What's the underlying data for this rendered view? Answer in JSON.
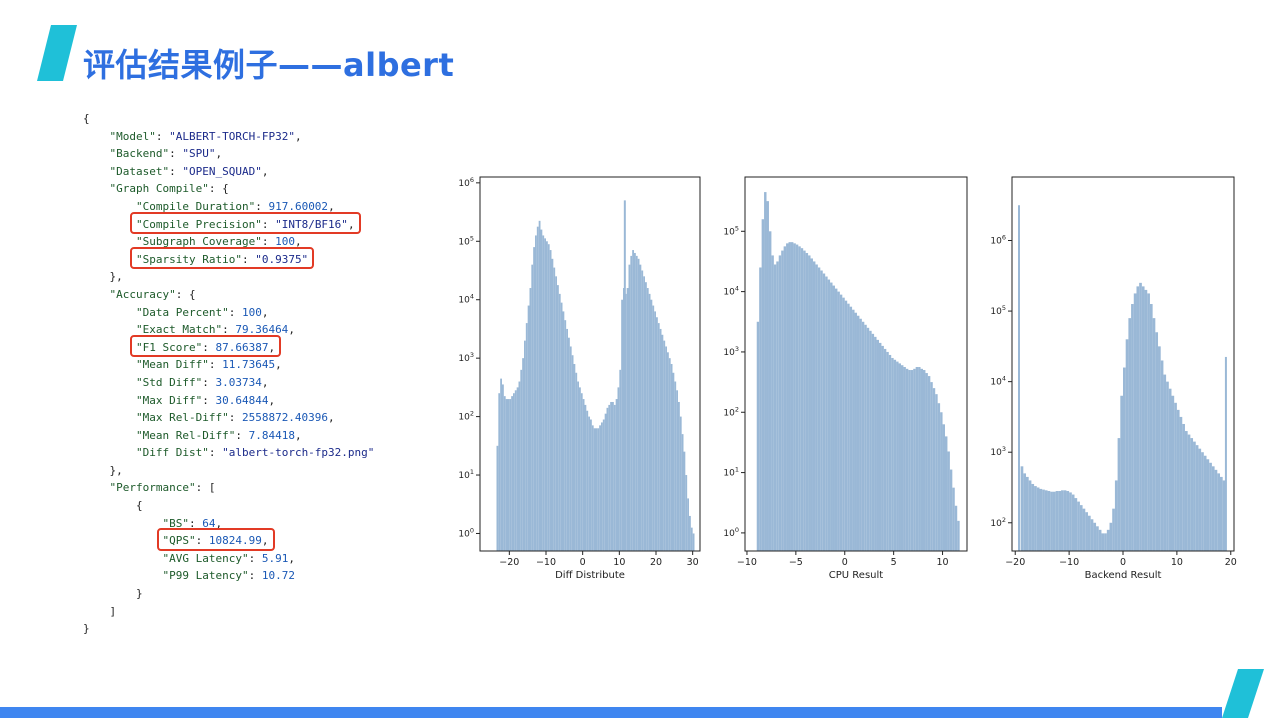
{
  "slide": {
    "title": "评估结果例子——albert"
  },
  "json_lines": [
    [
      {
        "t": "p",
        "v": "{"
      }
    ],
    [
      {
        "t": "p",
        "v": "    "
      },
      {
        "t": "k",
        "v": "\"Model\""
      },
      {
        "t": "p",
        "v": ": "
      },
      {
        "t": "s",
        "v": "\"ALBERT-TORCH-FP32\""
      },
      {
        "t": "p",
        "v": ","
      }
    ],
    [
      {
        "t": "p",
        "v": "    "
      },
      {
        "t": "k",
        "v": "\"Backend\""
      },
      {
        "t": "p",
        "v": ": "
      },
      {
        "t": "s",
        "v": "\"SPU\""
      },
      {
        "t": "p",
        "v": ","
      }
    ],
    [
      {
        "t": "p",
        "v": "    "
      },
      {
        "t": "k",
        "v": "\"Dataset\""
      },
      {
        "t": "p",
        "v": ": "
      },
      {
        "t": "s",
        "v": "\"OPEN_SQUAD\""
      },
      {
        "t": "p",
        "v": ","
      }
    ],
    [
      {
        "t": "p",
        "v": "    "
      },
      {
        "t": "k",
        "v": "\"Graph Compile\""
      },
      {
        "t": "p",
        "v": ": {"
      }
    ],
    [
      {
        "t": "p",
        "v": "        "
      },
      {
        "t": "k",
        "v": "\"Compile Duration\""
      },
      {
        "t": "p",
        "v": ": "
      },
      {
        "t": "n",
        "v": "917.60002"
      },
      {
        "t": "p",
        "v": ","
      }
    ],
    [
      {
        "t": "p",
        "v": "        "
      },
      {
        "t": "k",
        "v": "\"Compile Precision\""
      },
      {
        "t": "p",
        "v": ": "
      },
      {
        "t": "s",
        "v": "\"INT8/BF16\""
      },
      {
        "t": "p",
        "v": ","
      }
    ],
    [
      {
        "t": "p",
        "v": "        "
      },
      {
        "t": "k",
        "v": "\"Subgraph Coverage\""
      },
      {
        "t": "p",
        "v": ": "
      },
      {
        "t": "n",
        "v": "100"
      },
      {
        "t": "p",
        "v": ","
      }
    ],
    [
      {
        "t": "p",
        "v": "        "
      },
      {
        "t": "k",
        "v": "\"Sparsity Ratio\""
      },
      {
        "t": "p",
        "v": ": "
      },
      {
        "t": "s",
        "v": "\"0.9375\""
      }
    ],
    [
      {
        "t": "p",
        "v": "    },"
      }
    ],
    [
      {
        "t": "p",
        "v": "    "
      },
      {
        "t": "k",
        "v": "\"Accuracy\""
      },
      {
        "t": "p",
        "v": ": {"
      }
    ],
    [
      {
        "t": "p",
        "v": "        "
      },
      {
        "t": "k",
        "v": "\"Data Percent\""
      },
      {
        "t": "p",
        "v": ": "
      },
      {
        "t": "n",
        "v": "100"
      },
      {
        "t": "p",
        "v": ","
      }
    ],
    [
      {
        "t": "p",
        "v": "        "
      },
      {
        "t": "k",
        "v": "\"Exact Match\""
      },
      {
        "t": "p",
        "v": ": "
      },
      {
        "t": "n",
        "v": "79.36464"
      },
      {
        "t": "p",
        "v": ","
      }
    ],
    [
      {
        "t": "p",
        "v": "        "
      },
      {
        "t": "k",
        "v": "\"F1 Score\""
      },
      {
        "t": "p",
        "v": ": "
      },
      {
        "t": "n",
        "v": "87.66387"
      },
      {
        "t": "p",
        "v": ","
      }
    ],
    [
      {
        "t": "p",
        "v": "        "
      },
      {
        "t": "k",
        "v": "\"Mean Diff\""
      },
      {
        "t": "p",
        "v": ": "
      },
      {
        "t": "n",
        "v": "11.73645"
      },
      {
        "t": "p",
        "v": ","
      }
    ],
    [
      {
        "t": "p",
        "v": "        "
      },
      {
        "t": "k",
        "v": "\"Std Diff\""
      },
      {
        "t": "p",
        "v": ": "
      },
      {
        "t": "n",
        "v": "3.03734"
      },
      {
        "t": "p",
        "v": ","
      }
    ],
    [
      {
        "t": "p",
        "v": "        "
      },
      {
        "t": "k",
        "v": "\"Max Diff\""
      },
      {
        "t": "p",
        "v": ": "
      },
      {
        "t": "n",
        "v": "30.64844"
      },
      {
        "t": "p",
        "v": ","
      }
    ],
    [
      {
        "t": "p",
        "v": "        "
      },
      {
        "t": "k",
        "v": "\"Max Rel-Diff\""
      },
      {
        "t": "p",
        "v": ": "
      },
      {
        "t": "n",
        "v": "2558872.40396"
      },
      {
        "t": "p",
        "v": ","
      }
    ],
    [
      {
        "t": "p",
        "v": "        "
      },
      {
        "t": "k",
        "v": "\"Mean Rel-Diff\""
      },
      {
        "t": "p",
        "v": ": "
      },
      {
        "t": "n",
        "v": "7.84418"
      },
      {
        "t": "p",
        "v": ","
      }
    ],
    [
      {
        "t": "p",
        "v": "        "
      },
      {
        "t": "k",
        "v": "\"Diff Dist\""
      },
      {
        "t": "p",
        "v": ": "
      },
      {
        "t": "s",
        "v": "\"albert-torch-fp32.png\""
      }
    ],
    [
      {
        "t": "p",
        "v": "    },"
      }
    ],
    [
      {
        "t": "p",
        "v": "    "
      },
      {
        "t": "k",
        "v": "\"Performance\""
      },
      {
        "t": "p",
        "v": ": ["
      }
    ],
    [
      {
        "t": "p",
        "v": "        {"
      }
    ],
    [
      {
        "t": "p",
        "v": "            "
      },
      {
        "t": "k",
        "v": "\"BS\""
      },
      {
        "t": "p",
        "v": ": "
      },
      {
        "t": "n",
        "v": "64"
      },
      {
        "t": "p",
        "v": ","
      }
    ],
    [
      {
        "t": "p",
        "v": "            "
      },
      {
        "t": "k",
        "v": "\"QPS\""
      },
      {
        "t": "p",
        "v": ": "
      },
      {
        "t": "n",
        "v": "10824.99"
      },
      {
        "t": "p",
        "v": ","
      }
    ],
    [
      {
        "t": "p",
        "v": "            "
      },
      {
        "t": "k",
        "v": "\"AVG Latency\""
      },
      {
        "t": "p",
        "v": ": "
      },
      {
        "t": "n",
        "v": "5.91"
      },
      {
        "t": "p",
        "v": ","
      }
    ],
    [
      {
        "t": "p",
        "v": "            "
      },
      {
        "t": "k",
        "v": "\"P99 Latency\""
      },
      {
        "t": "p",
        "v": ": "
      },
      {
        "t": "n",
        "v": "10.72"
      }
    ],
    [
      {
        "t": "p",
        "v": "        }"
      }
    ],
    [
      {
        "t": "p",
        "v": "    ]"
      }
    ],
    [
      {
        "t": "p",
        "v": "}"
      }
    ]
  ],
  "highlighted_lines": [
    6,
    8,
    13,
    24
  ],
  "highlight_color": "#e23a25",
  "colors": {
    "title": "#2e6fe0",
    "accent_bar": "#3f86f0",
    "accent_corner": "#1fc0d8",
    "hist_fill": "#9ab8d6",
    "json_key": "#1d5a2a",
    "json_string": "#1b2a8a",
    "json_number": "#1a58b5"
  },
  "chart_data": [
    {
      "type": "histogram",
      "xlabel": "Diff Distribute",
      "y_scale": "log",
      "xlim": [
        -28,
        32
      ],
      "ylim_log10": [
        -0.3,
        6.1
      ],
      "x_ticks": [
        -20,
        -10,
        0,
        10,
        20,
        30
      ],
      "y_ticks_log10": [
        0,
        1,
        2,
        3,
        4,
        5,
        6
      ],
      "bins_x": [
        -23.5,
        -23,
        -22.5,
        -22,
        -21.5,
        -21,
        -20.5,
        -20,
        -19.5,
        -19,
        -18.5,
        -18,
        -17.5,
        -17,
        -16.5,
        -16,
        -15.5,
        -15,
        -14.5,
        -14,
        -13.5,
        -13,
        -12.5,
        -12,
        -11.5,
        -11,
        -10.5,
        -10,
        -9.5,
        -9,
        -8.5,
        -8,
        -7.5,
        -7,
        -6.5,
        -6,
        -5.5,
        -5,
        -4.5,
        -4,
        -3.5,
        -3,
        -2.5,
        -2,
        -1.5,
        -1,
        -0.5,
        0,
        0.5,
        1,
        1.5,
        2,
        2.5,
        3,
        3.5,
        4,
        4.5,
        5,
        5.5,
        6,
        6.5,
        7,
        7.5,
        8,
        8.5,
        9,
        9.5,
        10,
        10.5,
        11,
        11.5,
        12,
        12.5,
        13,
        13.5,
        14,
        14.5,
        15,
        15.5,
        16,
        16.5,
        17,
        17.5,
        18,
        18.5,
        19,
        19.5,
        20,
        20.5,
        21,
        21.5,
        22,
        22.5,
        23,
        23.5,
        24,
        24.5,
        25,
        25.5,
        26,
        26.5,
        27,
        27.5,
        28,
        28.5,
        29,
        29.5,
        30
      ],
      "counts_log10": [
        1.5,
        2.4,
        2.65,
        2.55,
        2.35,
        2.3,
        2.3,
        2.3,
        2.35,
        2.4,
        2.45,
        2.5,
        2.6,
        2.8,
        3.0,
        3.3,
        3.6,
        3.9,
        4.2,
        4.6,
        4.9,
        5.1,
        5.25,
        5.35,
        5.2,
        5.1,
        5.05,
        5.0,
        4.95,
        4.85,
        4.7,
        4.55,
        4.4,
        4.25,
        4.1,
        3.95,
        3.8,
        3.65,
        3.5,
        3.35,
        3.2,
        3.05,
        2.9,
        2.75,
        2.6,
        2.5,
        2.4,
        2.3,
        2.2,
        2.1,
        2.0,
        1.95,
        1.85,
        1.8,
        1.8,
        1.8,
        1.85,
        1.9,
        1.95,
        2.05,
        2.15,
        2.2,
        2.25,
        2.25,
        2.2,
        2.3,
        2.5,
        2.8,
        4.0,
        4.2,
        4.1,
        4.2,
        4.6,
        4.75,
        4.85,
        4.8,
        4.75,
        4.7,
        4.6,
        4.5,
        4.4,
        4.3,
        4.2,
        4.1,
        4.0,
        3.9,
        3.8,
        3.7,
        3.6,
        3.5,
        3.4,
        3.3,
        3.2,
        3.1,
        3.0,
        2.9,
        2.75,
        2.6,
        2.45,
        2.25,
        2.0,
        1.7,
        1.4,
        1.0,
        0.6,
        0.3,
        0.1,
        0.0
      ],
      "spikes": [
        {
          "x": 11.5,
          "log10": 5.7
        }
      ]
    },
    {
      "type": "histogram",
      "xlabel": "CPU Result",
      "y_scale": "log",
      "xlim": [
        -10.2,
        12.5
      ],
      "ylim_log10": [
        -0.3,
        5.9
      ],
      "x_ticks": [
        -10,
        -5,
        0,
        5,
        10
      ],
      "y_ticks_log10": [
        0,
        1,
        2,
        3,
        4,
        5
      ],
      "bins_x": [
        -9,
        -8.75,
        -8.5,
        -8.25,
        -8,
        -7.75,
        -7.5,
        -7.25,
        -7,
        -6.75,
        -6.5,
        -6.25,
        -6,
        -5.75,
        -5.5,
        -5.25,
        -5,
        -4.75,
        -4.5,
        -4.25,
        -4,
        -3.75,
        -3.5,
        -3.25,
        -3,
        -2.75,
        -2.5,
        -2.25,
        -2,
        -1.75,
        -1.5,
        -1.25,
        -1,
        -0.75,
        -0.5,
        -0.25,
        0,
        0.25,
        0.5,
        0.75,
        1,
        1.25,
        1.5,
        1.75,
        2,
        2.25,
        2.5,
        2.75,
        3,
        3.25,
        3.5,
        3.75,
        4,
        4.25,
        4.5,
        4.75,
        5,
        5.25,
        5.5,
        5.75,
        6,
        6.25,
        6.5,
        6.75,
        7,
        7.25,
        7.5,
        7.75,
        8,
        8.25,
        8.5,
        8.75,
        9,
        9.25,
        9.5,
        9.75,
        10,
        10.25,
        10.5,
        10.75,
        11,
        11.25,
        11.5
      ],
      "counts_log10": [
        3.5,
        4.4,
        5.2,
        5.65,
        5.5,
        5.0,
        4.6,
        4.45,
        4.5,
        4.6,
        4.68,
        4.75,
        4.8,
        4.82,
        4.82,
        4.8,
        4.78,
        4.75,
        4.72,
        4.68,
        4.64,
        4.6,
        4.55,
        4.5,
        4.45,
        4.4,
        4.35,
        4.3,
        4.25,
        4.2,
        4.15,
        4.1,
        4.05,
        4.0,
        3.95,
        3.9,
        3.85,
        3.8,
        3.75,
        3.7,
        3.65,
        3.6,
        3.55,
        3.5,
        3.45,
        3.4,
        3.35,
        3.3,
        3.25,
        3.2,
        3.15,
        3.1,
        3.05,
        3.0,
        2.95,
        2.9,
        2.87,
        2.84,
        2.81,
        2.78,
        2.75,
        2.72,
        2.7,
        2.7,
        2.72,
        2.75,
        2.75,
        2.72,
        2.7,
        2.65,
        2.6,
        2.5,
        2.4,
        2.3,
        2.15,
        2.0,
        1.8,
        1.6,
        1.35,
        1.05,
        0.75,
        0.45,
        0.2
      ]
    },
    {
      "type": "histogram",
      "xlabel": "Backend Result",
      "y_scale": "log",
      "xlim": [
        -20.6,
        20.6
      ],
      "ylim_log10": [
        1.6,
        6.9
      ],
      "x_ticks": [
        -20,
        -10,
        0,
        10,
        20
      ],
      "y_ticks_log10": [
        2,
        3,
        4,
        5,
        6
      ],
      "bins_x": [
        -19,
        -18.5,
        -18,
        -17.5,
        -17,
        -16.5,
        -16,
        -15.5,
        -15,
        -14.5,
        -14,
        -13.5,
        -13,
        -12.5,
        -12,
        -11.5,
        -11,
        -10.5,
        -10,
        -9.5,
        -9,
        -8.5,
        -8,
        -7.5,
        -7,
        -6.5,
        -6,
        -5.5,
        -5,
        -4.5,
        -4,
        -3.5,
        -3,
        -2.5,
        -2,
        -1.5,
        -1,
        -0.5,
        0,
        0.5,
        1,
        1.5,
        2,
        2.5,
        3,
        3.5,
        4,
        4.5,
        5,
        5.5,
        6,
        6.5,
        7,
        7.5,
        8,
        8.5,
        9,
        9.5,
        10,
        10.5,
        11,
        11.5,
        12,
        12.5,
        13,
        13.5,
        14,
        14.5,
        15,
        15.5,
        16,
        16.5,
        17,
        17.5,
        18,
        18.5
      ],
      "counts_log10": [
        2.8,
        2.7,
        2.65,
        2.6,
        2.55,
        2.52,
        2.5,
        2.48,
        2.47,
        2.46,
        2.45,
        2.44,
        2.44,
        2.45,
        2.45,
        2.46,
        2.46,
        2.45,
        2.43,
        2.4,
        2.35,
        2.3,
        2.25,
        2.2,
        2.15,
        2.1,
        2.05,
        2.0,
        1.95,
        1.9,
        1.85,
        1.85,
        1.9,
        2.0,
        2.2,
        2.6,
        3.2,
        3.8,
        4.2,
        4.6,
        4.9,
        5.1,
        5.25,
        5.35,
        5.4,
        5.35,
        5.3,
        5.25,
        5.1,
        4.9,
        4.7,
        4.5,
        4.3,
        4.1,
        4.0,
        3.9,
        3.8,
        3.7,
        3.6,
        3.5,
        3.4,
        3.3,
        3.25,
        3.2,
        3.15,
        3.1,
        3.05,
        3.0,
        2.95,
        2.9,
        2.85,
        2.8,
        2.75,
        2.7,
        2.65,
        2.6
      ],
      "spikes": [
        {
          "x": -19.3,
          "log10": 6.5
        },
        {
          "x": 19.1,
          "log10": 4.35
        }
      ]
    }
  ]
}
